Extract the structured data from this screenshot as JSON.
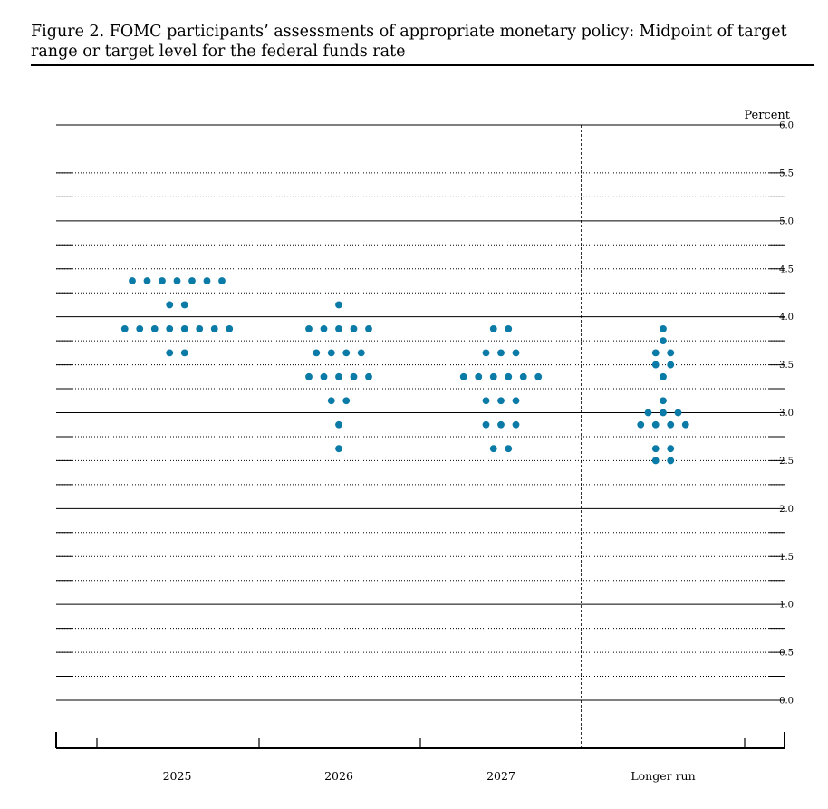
{
  "figure": {
    "title": "Figure 2.  FOMC participants’ assessments of appropriate monetary policy:  Midpoint of target range or target level for the federal funds rate"
  },
  "chart_data": {
    "type": "scatter",
    "title": "Figure 2.  FOMC participants’ assessments of appropriate monetary policy:  Midpoint of target range or target level for the federal funds rate",
    "ylabel": "Percent",
    "ylim": [
      0,
      6
    ],
    "y_ticks": [
      "6.0",
      "5.5",
      "5.0",
      "4.5",
      "4.0",
      "3.5",
      "3.0",
      "2.5",
      "2.0",
      "1.5",
      "1.0",
      "0.5",
      "0.0"
    ],
    "y_tick_values": [
      6.0,
      5.5,
      5.0,
      4.5,
      4.0,
      3.5,
      3.0,
      2.5,
      2.0,
      1.5,
      1.0,
      0.5,
      0.0
    ],
    "categories": [
      "2025",
      "2026",
      "2027",
      "Longer run"
    ],
    "dot_color": "#0a7aa6",
    "columns": [
      {
        "category": "2025",
        "dots": [
          {
            "rate": 4.375,
            "count": 7
          },
          {
            "rate": 4.125,
            "count": 2
          },
          {
            "rate": 3.875,
            "count": 8
          },
          {
            "rate": 3.625,
            "count": 2
          }
        ]
      },
      {
        "category": "2026",
        "dots": [
          {
            "rate": 4.125,
            "count": 1
          },
          {
            "rate": 3.875,
            "count": 5
          },
          {
            "rate": 3.625,
            "count": 4
          },
          {
            "rate": 3.375,
            "count": 5
          },
          {
            "rate": 3.125,
            "count": 2
          },
          {
            "rate": 2.875,
            "count": 1
          },
          {
            "rate": 2.625,
            "count": 1
          }
        ]
      },
      {
        "category": "2027",
        "dots": [
          {
            "rate": 3.875,
            "count": 2
          },
          {
            "rate": 3.625,
            "count": 3
          },
          {
            "rate": 3.375,
            "count": 6
          },
          {
            "rate": 3.125,
            "count": 3
          },
          {
            "rate": 2.875,
            "count": 3
          },
          {
            "rate": 2.625,
            "count": 2
          }
        ]
      },
      {
        "category": "Longer run",
        "dots": [
          {
            "rate": 3.875,
            "count": 1
          },
          {
            "rate": 3.75,
            "count": 1
          },
          {
            "rate": 3.625,
            "count": 2
          },
          {
            "rate": 3.5,
            "count": 2
          },
          {
            "rate": 3.375,
            "count": 1
          },
          {
            "rate": 3.125,
            "count": 1
          },
          {
            "rate": 3.0,
            "count": 3
          },
          {
            "rate": 2.875,
            "count": 4
          },
          {
            "rate": 2.625,
            "count": 2
          },
          {
            "rate": 2.5,
            "count": 2
          }
        ]
      }
    ],
    "grid": "solid at whole percents, dotted at half and quarter percents"
  }
}
